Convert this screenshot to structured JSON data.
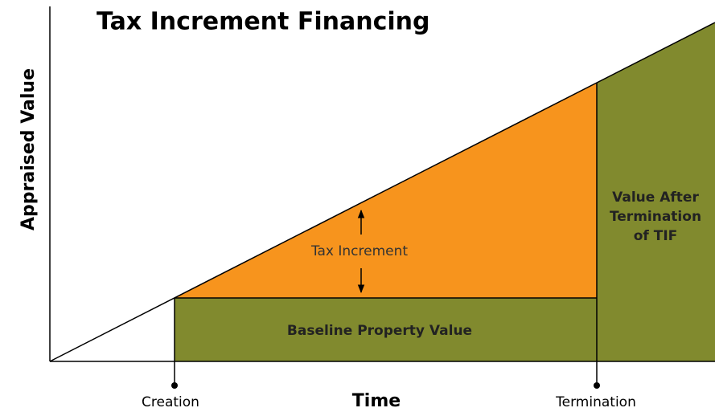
{
  "title": "Tax Increment Financing",
  "y_axis_label": "Appraised Value",
  "x_axis_label": "Time",
  "markers": {
    "start": "Creation",
    "end": "Termination"
  },
  "regions": {
    "increment": "Tax Increment",
    "baseline": "Baseline Property Value",
    "after": [
      "Value After",
      "Termination",
      "of TIF"
    ]
  }
}
